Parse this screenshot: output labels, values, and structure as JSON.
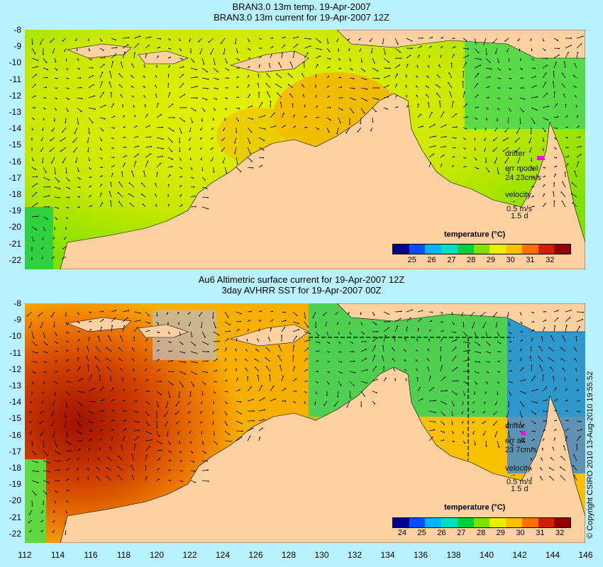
{
  "top_panel": {
    "title_line1": "BRAN3.0 13m temp. 19-Apr-2007",
    "title_line2": "BRAN3.0 13m current for 19-Apr-2007 12Z",
    "legend": {
      "drifter": "drifter",
      "err_label": "err model",
      "err_value": "24 23cm/s",
      "velocity": "velocity",
      "speed": "0.5 m/s",
      "days": "1.5 d"
    }
  },
  "bottom_panel": {
    "title_line1": "Au6 Altimetric surface current for 19-Apr-2007 12Z",
    "title_line2": "3day AVHRR SST for 19-Apr-2007 00Z",
    "legend": {
      "drifter": "drifter",
      "err_label": "err alt",
      "err_value": "23 7cm/s",
      "velocity": "velocity",
      "speed": "0.5 m/s",
      "days": "1.5 d"
    }
  },
  "colorbar": {
    "title": "temperature (°C)",
    "top_labels": [
      "25",
      "26",
      "27",
      "28",
      "29",
      "30",
      "31",
      "32"
    ],
    "bottom_labels": [
      "24",
      "25",
      "26",
      "27",
      "28",
      "29",
      "30",
      "31",
      "32"
    ],
    "colors": [
      "#00008b",
      "#0050ff",
      "#00b4ff",
      "#00e0c0",
      "#00d040",
      "#80e000",
      "#e8f000",
      "#ffc000",
      "#ff7000",
      "#d02000",
      "#900000"
    ]
  },
  "latitude_labels": [
    "-8",
    "-9",
    "-10",
    "-11",
    "-12",
    "-13",
    "-14",
    "-15",
    "-16",
    "-17",
    "-18",
    "-19",
    "-20",
    "-21",
    "-22"
  ],
  "longitude_labels": [
    "112",
    "114",
    "116",
    "118",
    "120",
    "122",
    "124",
    "126",
    "128",
    "130",
    "132",
    "134",
    "136",
    "138",
    "140",
    "142",
    "144",
    "146"
  ],
  "copyright": "© Copyright CSIRO 2010  13-Aug-2010 19:55:52",
  "colors": {
    "land": "#ffd0a0",
    "background": "#b8f2ff",
    "drifter": "#ff00ff"
  }
}
